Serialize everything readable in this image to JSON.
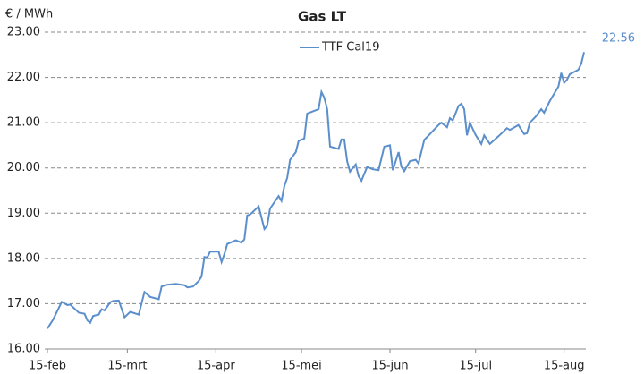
{
  "chart_data": {
    "type": "line",
    "title": "Gas LT",
    "y_label": "€ / MWh",
    "x": [
      0,
      2,
      5,
      7,
      8,
      11,
      13,
      14,
      15,
      16,
      18,
      19,
      20,
      22,
      23,
      25,
      27,
      29,
      32,
      34,
      36,
      39,
      40,
      42,
      45,
      48,
      49,
      51,
      53,
      54,
      55,
      56,
      57,
      60,
      61,
      62,
      63,
      66,
      68,
      69,
      70,
      71,
      74,
      76,
      77,
      78,
      81,
      82,
      83,
      84,
      85,
      87,
      88,
      90,
      91,
      95,
      96,
      97,
      98,
      99,
      102,
      103,
      104,
      105,
      106,
      108,
      109,
      110,
      112,
      114,
      116,
      118,
      120,
      121,
      123,
      124,
      125,
      127,
      129,
      130,
      132,
      134,
      137,
      138,
      140,
      141,
      142,
      144,
      145,
      146,
      147,
      148,
      150,
      152,
      153,
      155,
      158,
      161,
      162,
      165,
      167,
      168,
      169,
      171,
      173,
      174,
      176,
      179,
      180,
      181,
      182,
      183,
      186,
      187,
      188
    ],
    "series": [
      {
        "name": "TTF Cal19",
        "color": "#5b8fcc",
        "values": [
          16.45,
          16.65,
          17.04,
          16.97,
          16.98,
          16.8,
          16.78,
          16.63,
          16.58,
          16.73,
          16.76,
          16.88,
          16.85,
          17.03,
          17.06,
          17.07,
          16.7,
          16.82,
          16.76,
          17.26,
          17.15,
          17.1,
          17.38,
          17.42,
          17.44,
          17.41,
          17.36,
          17.38,
          17.5,
          17.6,
          18.03,
          18.02,
          18.15,
          18.15,
          17.92,
          18.1,
          18.32,
          18.4,
          18.35,
          18.42,
          18.95,
          18.97,
          19.15,
          18.65,
          18.72,
          19.1,
          19.38,
          19.27,
          19.6,
          19.78,
          20.18,
          20.35,
          20.6,
          20.65,
          21.2,
          21.3,
          21.68,
          21.55,
          21.3,
          20.47,
          20.42,
          20.63,
          20.63,
          20.15,
          19.92,
          20.08,
          19.82,
          19.72,
          20.02,
          19.97,
          19.95,
          20.47,
          20.5,
          19.95,
          20.35,
          20.03,
          19.93,
          20.15,
          20.18,
          20.1,
          20.62,
          20.75,
          20.95,
          21.0,
          20.9,
          21.1,
          21.05,
          21.37,
          21.42,
          21.3,
          20.72,
          21.0,
          20.73,
          20.53,
          20.72,
          20.53,
          20.7,
          20.88,
          20.84,
          20.95,
          20.75,
          20.77,
          21.0,
          21.13,
          21.3,
          21.22,
          21.48,
          21.8,
          22.1,
          21.88,
          21.95,
          22.07,
          22.17,
          22.3,
          22.56
        ]
      }
    ],
    "xlim": [
      0,
      188
    ],
    "xticks": [
      {
        "value": 0,
        "label": "15-feb"
      },
      {
        "value": 28,
        "label": "15-mrt"
      },
      {
        "value": 59,
        "label": "15-apr"
      },
      {
        "value": 89,
        "label": "15-mei"
      },
      {
        "value": 120,
        "label": "15-jun"
      },
      {
        "value": 150,
        "label": "15-jul"
      },
      {
        "value": 181,
        "label": "15-aug"
      }
    ],
    "ylim": [
      16,
      23
    ],
    "yticks": [
      {
        "value": 16,
        "label": "16.00"
      },
      {
        "value": 17,
        "label": "17.00"
      },
      {
        "value": 18,
        "label": "18.00"
      },
      {
        "value": 19,
        "label": "19.00"
      },
      {
        "value": 20,
        "label": "20.00"
      },
      {
        "value": 21,
        "label": "21.00"
      },
      {
        "value": 22,
        "label": "22.00"
      },
      {
        "value": 23,
        "label": "23.00"
      }
    ],
    "grid": true
  }
}
